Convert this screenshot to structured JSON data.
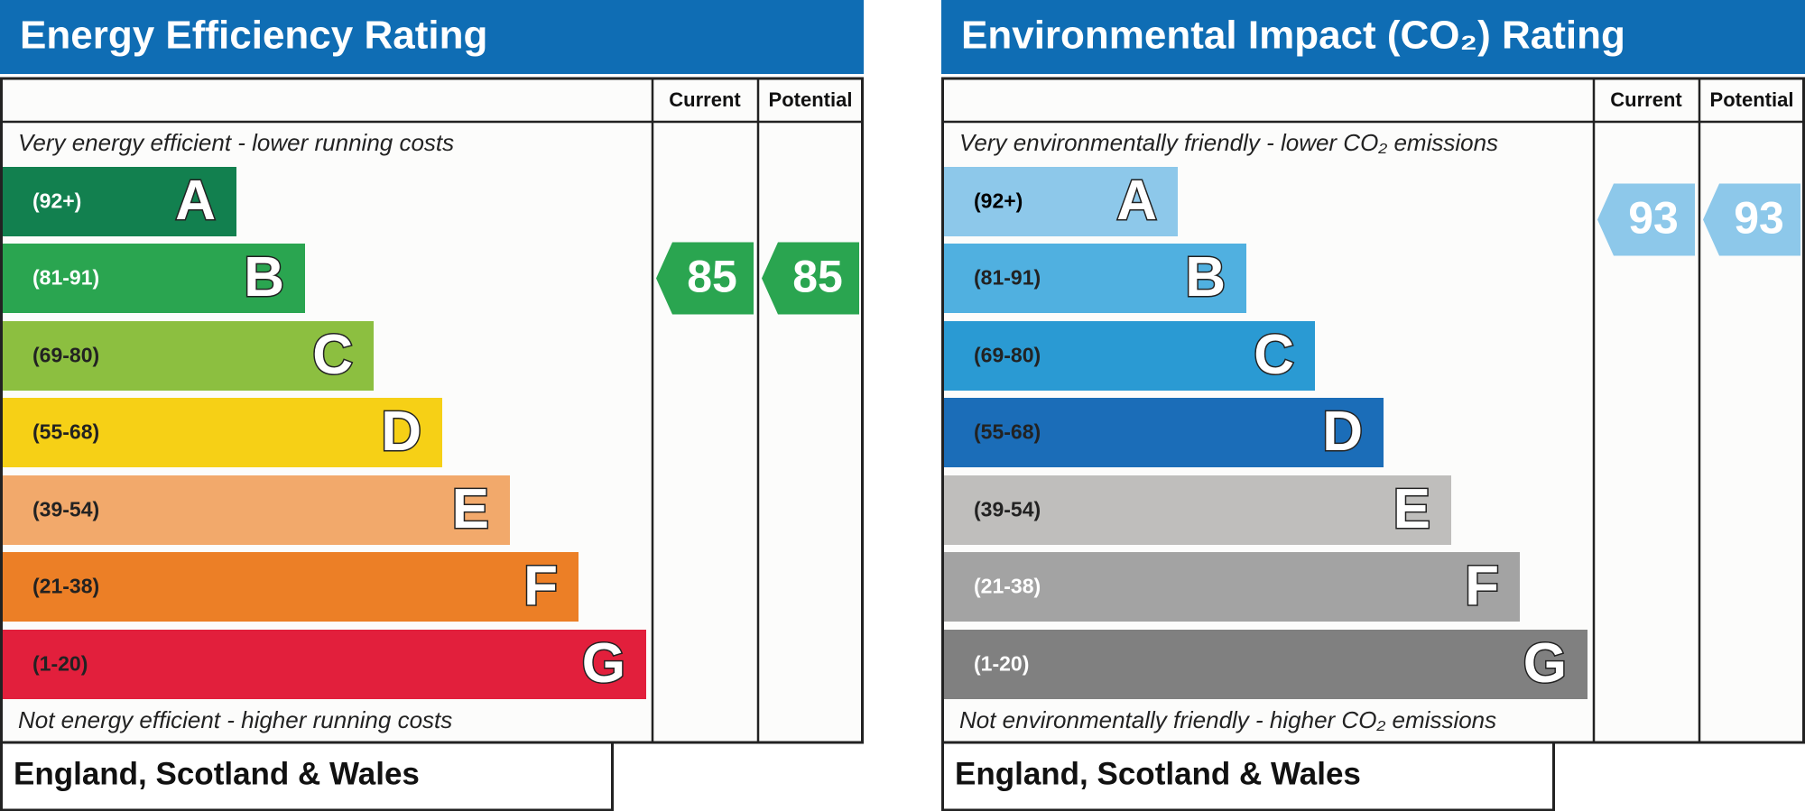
{
  "panels": [
    {
      "title": "Energy Efficiency Rating",
      "headers": [
        "Current",
        "Potential"
      ],
      "top_note": "Very energy efficient - lower running costs",
      "bottom_note": "Not energy efficient - higher running costs",
      "bands": [
        {
          "range": "(92+)",
          "letter": "A",
          "color": "#12804f",
          "text_color": "#ffffff"
        },
        {
          "range": "(81-91)",
          "letter": "B",
          "color": "#2aa550",
          "text_color": "#ffffff"
        },
        {
          "range": "(69-80)",
          "letter": "C",
          "color": "#8cbf40",
          "text_color": "#222222"
        },
        {
          "range": "(55-68)",
          "letter": "D",
          "color": "#f6d016",
          "text_color": "#222222"
        },
        {
          "range": "(39-54)",
          "letter": "E",
          "color": "#f2a96b",
          "text_color": "#222222"
        },
        {
          "range": "(21-38)",
          "letter": "F",
          "color": "#ec7f26",
          "text_color": "#222222"
        },
        {
          "range": "(1-20)",
          "letter": "G",
          "color": "#e21f3c",
          "text_color": "#222222"
        }
      ],
      "current": 85,
      "potential": 85,
      "footer": "England, Scotland & Wales"
    },
    {
      "title": "Environmental Impact (CO₂) Rating",
      "headers": [
        "Current",
        "Potential"
      ],
      "top_note": "Very environmentally friendly - lower CO₂ emissions",
      "bottom_note": "Not environmentally friendly - higher CO₂ emissions",
      "bands": [
        {
          "range": "(92+)",
          "letter": "A",
          "color": "#8dc8ea",
          "text_color": "#000000"
        },
        {
          "range": "(81-91)",
          "letter": "B",
          "color": "#50b0e0",
          "text_color": "#222222"
        },
        {
          "range": "(69-80)",
          "letter": "C",
          "color": "#2a9ad3",
          "text_color": "#222222"
        },
        {
          "range": "(55-68)",
          "letter": "D",
          "color": "#1b6db8",
          "text_color": "#222222"
        },
        {
          "range": "(39-54)",
          "letter": "E",
          "color": "#bfbebc",
          "text_color": "#222222"
        },
        {
          "range": "(21-38)",
          "letter": "F",
          "color": "#a3a3a3",
          "text_color": "#ffffff"
        },
        {
          "range": "(1-20)",
          "letter": "G",
          "color": "#808080",
          "text_color": "#ffffff"
        }
      ],
      "current": 93,
      "potential": 93,
      "footer": "England, Scotland & Wales"
    }
  ]
}
